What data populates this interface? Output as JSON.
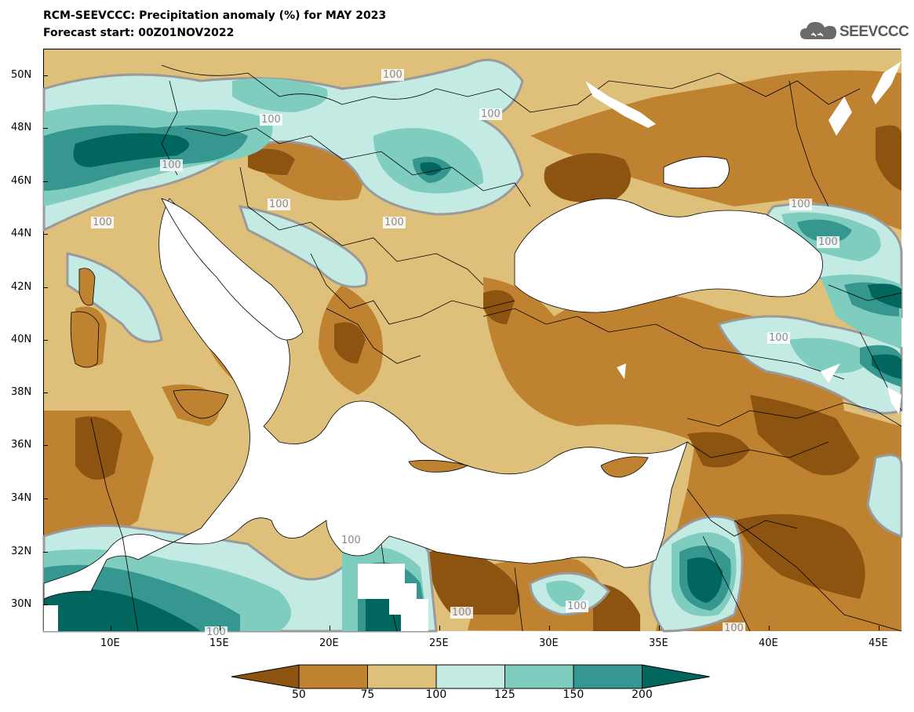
{
  "header": {
    "title": "RCM-SEEVCCC: Precipitation anomaly (%) for MAY 2023",
    "subtitle": "Forecast start: 00Z01NOV2022"
  },
  "logo": {
    "text": "SEEVCCC",
    "icon": "cloud-icon"
  },
  "map": {
    "lat_labels": [
      "50N",
      "48N",
      "46N",
      "44N",
      "42N",
      "40N",
      "38N",
      "36N",
      "34N",
      "32N",
      "30N"
    ],
    "lon_labels": [
      "10E",
      "15E",
      "20E",
      "25E",
      "30E",
      "35E",
      "40E",
      "45E"
    ],
    "contour_labels": [
      "100",
      "100",
      "100",
      "100",
      "100",
      "100",
      "100",
      "100",
      "100",
      "100",
      "100",
      "100",
      "100",
      "100",
      "100"
    ],
    "colors": {
      "below_50": "#8c5410",
      "50_75": "#bf8230",
      "75_100": "#dfc07a",
      "100_125": "#c4eae4",
      "125_150": "#7fcdbe",
      "150_200": "#35978f",
      "above_200": "#01665e",
      "sea": "#ffffff"
    }
  },
  "colorbar": {
    "labels": [
      "50",
      "75",
      "100",
      "125",
      "150",
      "200"
    ],
    "colors": [
      "#8c5410",
      "#bf8230",
      "#dfc07a",
      "#c4eae4",
      "#7fcdbe",
      "#35978f",
      "#01665e"
    ]
  }
}
